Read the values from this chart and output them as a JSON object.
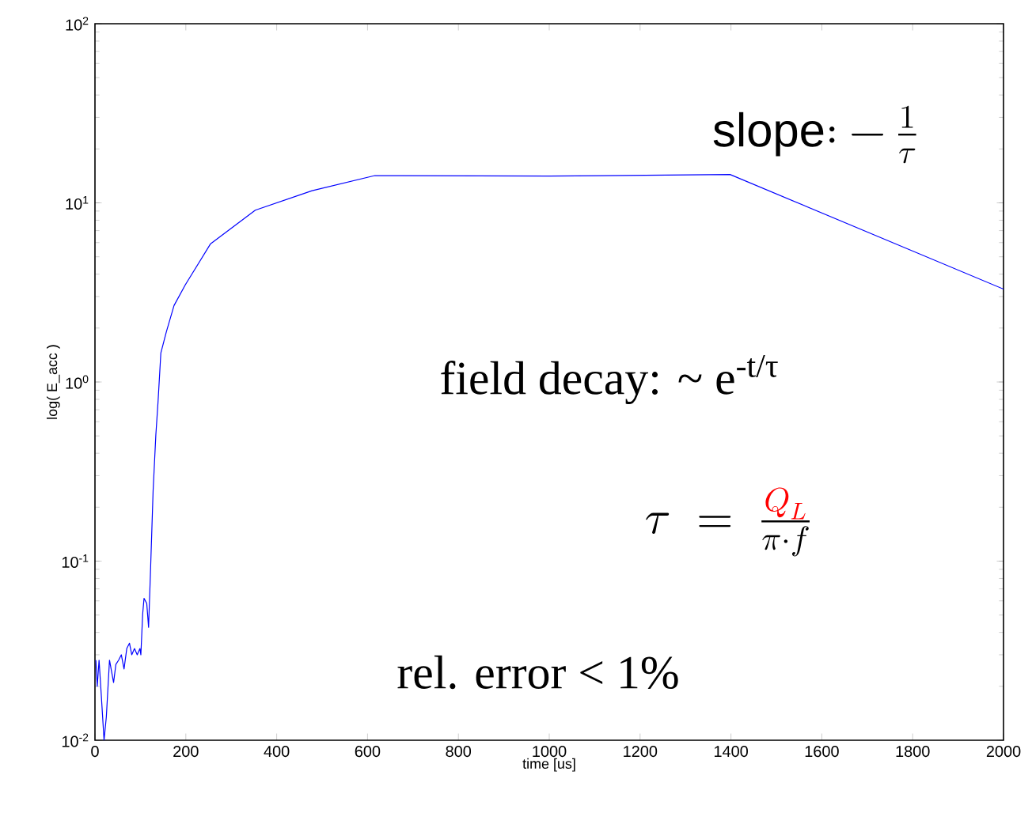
{
  "chart_data": {
    "type": "line",
    "xlabel": "time [us]",
    "ylabel": "log( E_acc )",
    "log": "y",
    "xlim": [
      0,
      2000
    ],
    "xticks": [
      0,
      200,
      400,
      600,
      800,
      1000,
      1200,
      1400,
      1600,
      1800,
      2000
    ],
    "ylim": [
      0.01,
      100
    ],
    "yticks": [
      {
        "value": 0.01,
        "label": "10$^{-2}$"
      },
      {
        "value": 0.1,
        "label": "10$^{-1}$"
      },
      {
        "value": 1,
        "label": "10$^{0}$"
      },
      {
        "value": 10,
        "label": "10$^{1}$"
      },
      {
        "value": 100,
        "label": "10$^{2}$"
      }
    ],
    "x": [
      2,
      5,
      9,
      14,
      20,
      25,
      32,
      41,
      46,
      52,
      58,
      64,
      70,
      76,
      81,
      87,
      93,
      99,
      101,
      105,
      108,
      114,
      118,
      122,
      128,
      134,
      139,
      145,
      157,
      174,
      199,
      254,
      353,
      478,
      616,
      1000,
      1398,
      2000
    ],
    "series": [
      {
        "color": "#0000ff",
        "values": [
          0.028,
          0.02,
          0.028,
          0.0177,
          0.01,
          0.0135,
          0.028,
          0.021,
          0.0265,
          0.028,
          0.03,
          0.025,
          0.0325,
          0.0348,
          0.03,
          0.0325,
          0.03,
          0.0325,
          0.03,
          0.0506,
          0.062,
          0.058,
          0.0427,
          0.084,
          0.248,
          0.506,
          0.787,
          1.45,
          1.9,
          2.67,
          3.49,
          5.89,
          9.1,
          11.7,
          14.2,
          14.1,
          14.4,
          3.3
        ]
      }
    ],
    "annotations": [
      "\\mathrm{slope{:}}-\\frac{1}{\\tau}",
      "field decay: ~ e$^{-t/τ}$",
      "\\tau\\;=\\;\\frac{\\color{red}Q_L}{\\pi\\cdot f}",
      "rel. error < 1%"
    ]
  }
}
